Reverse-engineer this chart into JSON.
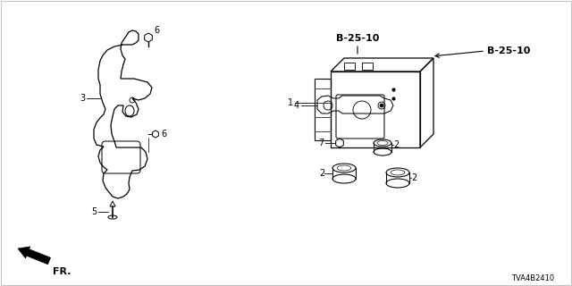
{
  "bg_color": "#ffffff",
  "diagram_id": "TVA4B2410",
  "labels": {
    "b25_10_top": "B-25-10",
    "b25_10_side": "B-25-10",
    "fr": "FR.",
    "part1": "1",
    "part2a": "2",
    "part2b": "2",
    "part2c": "2",
    "part3": "3",
    "part4": "4",
    "part5": "5",
    "part6a": "6",
    "part6b": "6",
    "part7": "7"
  },
  "font_size_label": 7,
  "font_size_diag_id": 6,
  "font_size_ref": 8
}
